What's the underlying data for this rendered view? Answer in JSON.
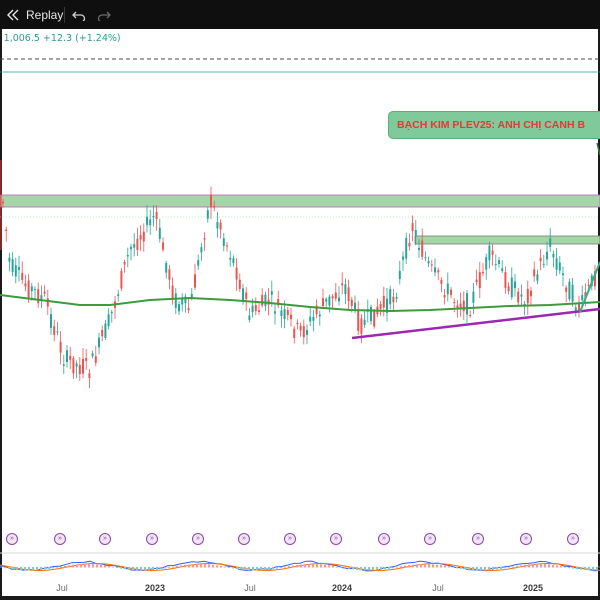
{
  "toolbar": {
    "replay_label": "Replay",
    "replay_icon": "replay-icon",
    "undo_icon": "undo-icon",
    "redo_icon": "redo-icon"
  },
  "ticker": {
    "text": "C 1,006.5  +12.3 (+1.24%)",
    "color": "#2a9d8f"
  },
  "annotation": {
    "text": "BẠCH KIM PLEV25: ANH CHỊ CANH B"
  },
  "time_axis": {
    "labels": [
      {
        "text": "Jul",
        "bold": false,
        "x": 62
      },
      {
        "text": "2023",
        "bold": true,
        "x": 155
      },
      {
        "text": "Jul",
        "bold": false,
        "x": 250
      },
      {
        "text": "2024",
        "bold": true,
        "x": 342
      },
      {
        "text": "Jul",
        "bold": false,
        "x": 438
      },
      {
        "text": "2025",
        "bold": true,
        "x": 533
      }
    ]
  },
  "events": {
    "icon": "event-marker-icon",
    "glyph": "»",
    "count": 14
  },
  "chart_data": {
    "type": "candlestick",
    "title": "",
    "series": [
      {
        "name": "",
        "color_up": "#26a69a",
        "color_down": "#ef5350"
      }
    ],
    "overlays": [
      "moving-average",
      "resistance-zone",
      "support-zone",
      "trendline"
    ],
    "colors": {
      "up": "#26a69a",
      "down": "#ef5350",
      "ma": "#3d9a3d",
      "zone": "#a5d6a7",
      "trendline": "#9c27b0",
      "arrow": "#2bb38a"
    }
  }
}
